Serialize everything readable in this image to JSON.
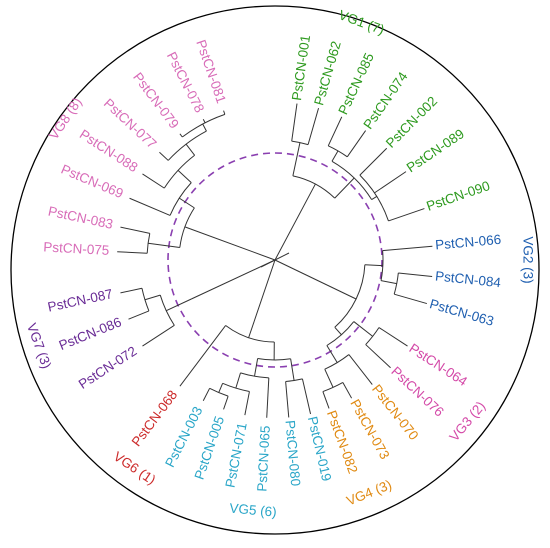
{
  "groups": [
    {
      "id": "vg1",
      "label": "VG1 (7)",
      "color": "#2e9a1f",
      "leaves": [
        "PstCN-001",
        "PstCN-062",
        "PstCN-085",
        "PstCN-074",
        "PstCN-002",
        "PstCN-089",
        "PstCN-090"
      ]
    },
    {
      "id": "vg2",
      "label": "VG2 (3)",
      "color": "#1f5fb0",
      "leaves": [
        "PstCN-066",
        "PstCN-084",
        "PstCN-063"
      ]
    },
    {
      "id": "vg3",
      "label": "VG3 (2)",
      "color": "#d44aa8",
      "leaves": [
        "PstCN-064",
        "PstCN-076"
      ]
    },
    {
      "id": "vg4",
      "label": "VG4 (3)",
      "color": "#e08a12",
      "leaves": [
        "PstCN-070",
        "PstCN-073",
        "PstCN-082"
      ]
    },
    {
      "id": "vg5",
      "label": "VG5 (6)",
      "color": "#2aa6c8",
      "leaves": [
        "PstCN-019",
        "PstCN-080",
        "PstCN-065",
        "PstCN-071",
        "PstCN-005",
        "PstCN-003"
      ]
    },
    {
      "id": "vg6",
      "label": "VG6 (1)",
      "color": "#cc2a2a",
      "leaves": [
        "PstCN-068"
      ]
    },
    {
      "id": "vg7",
      "label": "VG7 (3)",
      "color": "#6a2c96",
      "leaves": [
        "PstCN-072",
        "PstCN-086",
        "PstCN-087"
      ]
    },
    {
      "id": "vg8",
      "label": "VG8 (8)",
      "color": "#d86cb8",
      "leaves": [
        "PstCN-075",
        "PstCN-083",
        "PstCN-069",
        "PstCN-088",
        "PstCN-077",
        "PstCN-079",
        "PstCN-078",
        "PstCN-081"
      ]
    }
  ],
  "colors": {
    "circle": "#000000",
    "branch": "#333333",
    "dashed": "#8a3fb0"
  }
}
